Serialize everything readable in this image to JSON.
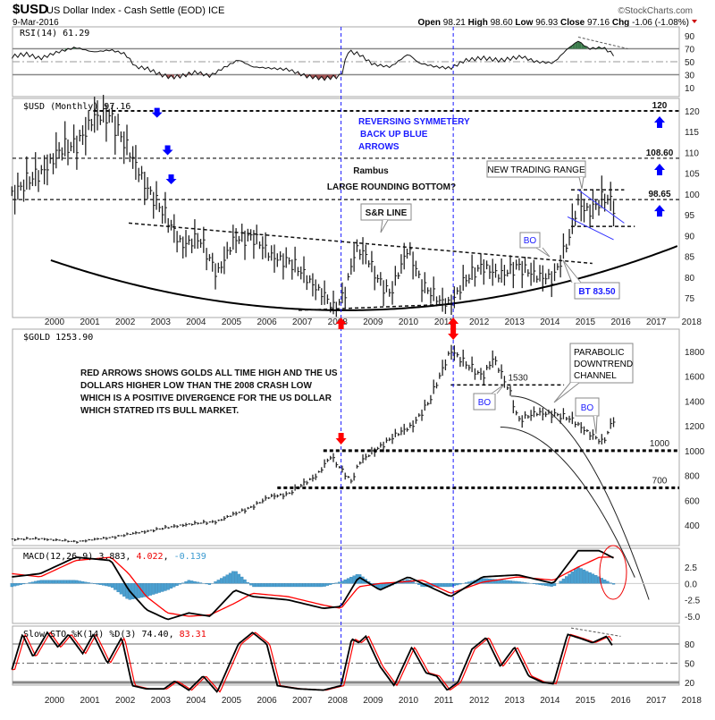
{
  "header": {
    "symbol": "$USD",
    "name": "US Dollar Index - Cash Settle (EOD) ICE",
    "date": "9-Mar-2016",
    "brand": "©StockCharts.com",
    "open_label": "Open",
    "open": "98.21",
    "high_label": "High",
    "high": "98.60",
    "low_label": "Low",
    "low": "96.93",
    "close_label": "Close",
    "close": "97.16",
    "chg_label": "Chg",
    "chg": "-1.06 (-1.08%)"
  },
  "colors": {
    "price": "#222222",
    "signal": "#ff0000",
    "histogram": "#4aa0d0",
    "divider": "#1a1aff",
    "arrow_red": "#ff0000",
    "arrow_blue": "#0000ff",
    "rsi_over": "#3a7a4a",
    "rsi_under": "#a05050"
  },
  "x_axis_ticks": [
    "2000",
    "2001",
    "2002",
    "2003",
    "2004",
    "2005",
    "2006",
    "2007",
    "2008",
    "2009",
    "2010",
    "2011",
    "2012",
    "2013",
    "2014",
    "2015",
    "2016",
    "2017",
    "2018"
  ],
  "chart_data": [
    {
      "type": "line",
      "panel": "rsi",
      "title": "RSI(14) 61.29",
      "ylim": [
        0,
        100
      ],
      "yticks": [
        "90",
        "70",
        "50",
        "30",
        "10"
      ],
      "levels": [
        70,
        50,
        30
      ],
      "x": [
        1999.2,
        1999.6,
        2000,
        2000.5,
        2001,
        2001.5,
        2002,
        2002.4,
        2002.7,
        2003,
        2003.4,
        2003.7,
        2004,
        2004.4,
        2004.8,
        2005.1,
        2005.6,
        2006,
        2006.5,
        2007,
        2007.5,
        2008,
        2008.5,
        2008.7,
        2009,
        2009.4,
        2009.9,
        2010.4,
        2010.7,
        2011.2,
        2011.6,
        2012,
        2012.5,
        2013,
        2013.6,
        2014,
        2014.5,
        2014.9,
        2015.2,
        2015.5,
        2015.9,
        2016.2
      ],
      "values": [
        58,
        62,
        55,
        65,
        72,
        65,
        68,
        62,
        42,
        40,
        30,
        26,
        28,
        34,
        28,
        38,
        53,
        42,
        40,
        38,
        28,
        24,
        28,
        66,
        62,
        46,
        42,
        62,
        48,
        42,
        40,
        52,
        56,
        52,
        58,
        50,
        48,
        70,
        82,
        70,
        72,
        61
      ]
    },
    {
      "type": "bar",
      "panel": "usd",
      "title": "$USD (Monthly) 97.16",
      "ylim": [
        72,
        123
      ],
      "yticks": [
        "120",
        "115",
        "110",
        "105",
        "100",
        "95",
        "90",
        "85",
        "80",
        "75"
      ],
      "x": [
        1999.2,
        1999.5,
        2000,
        2000.5,
        2001,
        2001.5,
        2002,
        2002.5,
        2003,
        2003.5,
        2004,
        2004.5,
        2005,
        2005.5,
        2006,
        2006.5,
        2007,
        2007.5,
        2008,
        2008.3,
        2008.6,
        2008.9,
        2009.2,
        2009.5,
        2009.9,
        2010.4,
        2010.8,
        2011.3,
        2011.6,
        2012,
        2012.5,
        2013,
        2013.5,
        2014,
        2014.5,
        2014.9,
        2015.2,
        2015.5,
        2016,
        2016.2
      ],
      "values": [
        100,
        102,
        105,
        110,
        112,
        118,
        119,
        110,
        102,
        95,
        88,
        89,
        81,
        89,
        90,
        85,
        84,
        80,
        76,
        72,
        76,
        87,
        85,
        80,
        76,
        87,
        78,
        74,
        74,
        79,
        83,
        80,
        83,
        80,
        80,
        88,
        98,
        96,
        99,
        97.16
      ],
      "levels": [
        {
          "label": "120",
          "value": 120
        },
        {
          "label": "108.60",
          "value": 108.6
        },
        {
          "label": "98.65",
          "value": 98.65
        }
      ],
      "annotations": {
        "symmetry": [
          "REVERSING SYMMETERY",
          " BACK UP BLUE",
          "ARROWS"
        ],
        "rambus": "Rambus",
        "rounding": "LARGE ROUNDING BOTTOM?",
        "sr_line": "S&R LINE",
        "new_range": "NEW TRADING RANGE",
        "bo": "BO",
        "bt": "BT 83.50"
      }
    },
    {
      "type": "bar",
      "panel": "gold",
      "title": "$GOLD 1253.90",
      "ylim": [
        300,
        1950
      ],
      "yticks": [
        "1800",
        "1600",
        "1400",
        "1200",
        "1000",
        "800",
        "600",
        "400"
      ],
      "x": [
        1999.2,
        2000,
        2001,
        2002,
        2003,
        2004,
        2005,
        2006,
        2006.5,
        2007,
        2007.8,
        2008.2,
        2008.8,
        2009,
        2009.9,
        2010.5,
        2011,
        2011.6,
        2012,
        2012.5,
        2012.8,
        2013.3,
        2013.5,
        2014,
        2014.5,
        2015,
        2015.9,
        2016.2
      ],
      "values": [
        285,
        290,
        265,
        300,
        350,
        400,
        430,
        550,
        630,
        650,
        800,
        950,
        750,
        900,
        1100,
        1200,
        1400,
        1820,
        1700,
        1600,
        1750,
        1450,
        1250,
        1300,
        1300,
        1250,
        1060,
        1253.9
      ],
      "levels": [
        {
          "label": "1530",
          "value": 1530
        },
        {
          "label": "1000",
          "value": 1000
        },
        {
          "label": "700",
          "value": 700
        }
      ],
      "annotations": {
        "note": [
          "RED ARROWS SHOWS GOLDS ALL TIME HIGH AND THE US",
          "DOLLARS HIGHER LOW THAN THE 2008 CRASH LOW",
          "WHICH IS A POSITIVE DIVERGENCE FOR THE US DOLLAR",
          "WHICH STATRED ITS BULL MARKET."
        ],
        "parabolic": [
          "PARABOLIC",
          "DOWNTREND",
          "CHANNEL"
        ],
        "bo": "BO"
      }
    },
    {
      "type": "line",
      "panel": "macd",
      "title": "MACD(12,26,9)",
      "macd_value": "3.883",
      "signal_value": "4.022",
      "hist_value": "-0.139",
      "ylim": [
        -6.5,
        5.5
      ],
      "yticks": [
        "2.5",
        "0.0",
        "-2.5",
        "-5.0"
      ],
      "x": [
        1999.2,
        2000,
        2001,
        2002,
        2002.5,
        2003,
        2003.6,
        2004.2,
        2004.8,
        2005.5,
        2006,
        2007,
        2008,
        2008.5,
        2009,
        2009.6,
        2010.4,
        2010.8,
        2011.6,
        2012.5,
        2013.5,
        2014.5,
        2015.2,
        2015.8,
        2016.2
      ],
      "series": [
        {
          "name": "MACD",
          "values": [
            1,
            1.5,
            4,
            3.5,
            -1,
            -4,
            -5.5,
            -4.5,
            -5,
            -1,
            -2,
            -2.5,
            -3.8,
            -3.5,
            1,
            -1,
            1,
            0,
            -2,
            1,
            1.3,
            0,
            5,
            5,
            3.883
          ]
        },
        {
          "name": "Signal",
          "values": [
            1.5,
            1,
            3.5,
            4,
            1.5,
            -2,
            -4.5,
            -5,
            -4.8,
            -3,
            -1.5,
            -2,
            -3.3,
            -3.8,
            -0.5,
            0,
            0.3,
            0.5,
            -1.5,
            0.2,
            1,
            0.5,
            2.5,
            4,
            4.022
          ]
        }
      ]
    },
    {
      "type": "line",
      "panel": "sto",
      "title": "Slow STO %K(14) %D(3)",
      "k_value": "74.40",
      "d_value": "83.31",
      "ylim": [
        0,
        105
      ],
      "yticks": [
        "80",
        "50",
        "20"
      ],
      "levels": [
        80,
        50,
        20
      ],
      "x": [
        1999.2,
        1999.5,
        1999.8,
        2000.2,
        2000.5,
        2000.8,
        2001.2,
        2001.5,
        2001.9,
        2002.3,
        2002.6,
        2003,
        2003.5,
        2003.8,
        2004.2,
        2004.6,
        2005,
        2005.6,
        2006,
        2006.4,
        2006.7,
        2007.3,
        2008,
        2008.5,
        2008.8,
        2009,
        2009.2,
        2009.6,
        2010,
        2010.5,
        2010.9,
        2011.2,
        2011.5,
        2011.8,
        2012.2,
        2012.6,
        2013,
        2013.4,
        2013.8,
        2014.2,
        2014.5,
        2014.9,
        2015.3,
        2015.6,
        2016,
        2016.2
      ],
      "series": [
        {
          "name": "%K",
          "values": [
            40,
            95,
            60,
            98,
            75,
            95,
            65,
            95,
            50,
            90,
            15,
            10,
            10,
            22,
            8,
            30,
            5,
            80,
            98,
            80,
            15,
            10,
            8,
            15,
            88,
            82,
            92,
            45,
            15,
            75,
            35,
            30,
            8,
            20,
            72,
            90,
            45,
            75,
            30,
            20,
            18,
            95,
            88,
            82,
            92,
            74.4
          ]
        }
      ]
    }
  ]
}
